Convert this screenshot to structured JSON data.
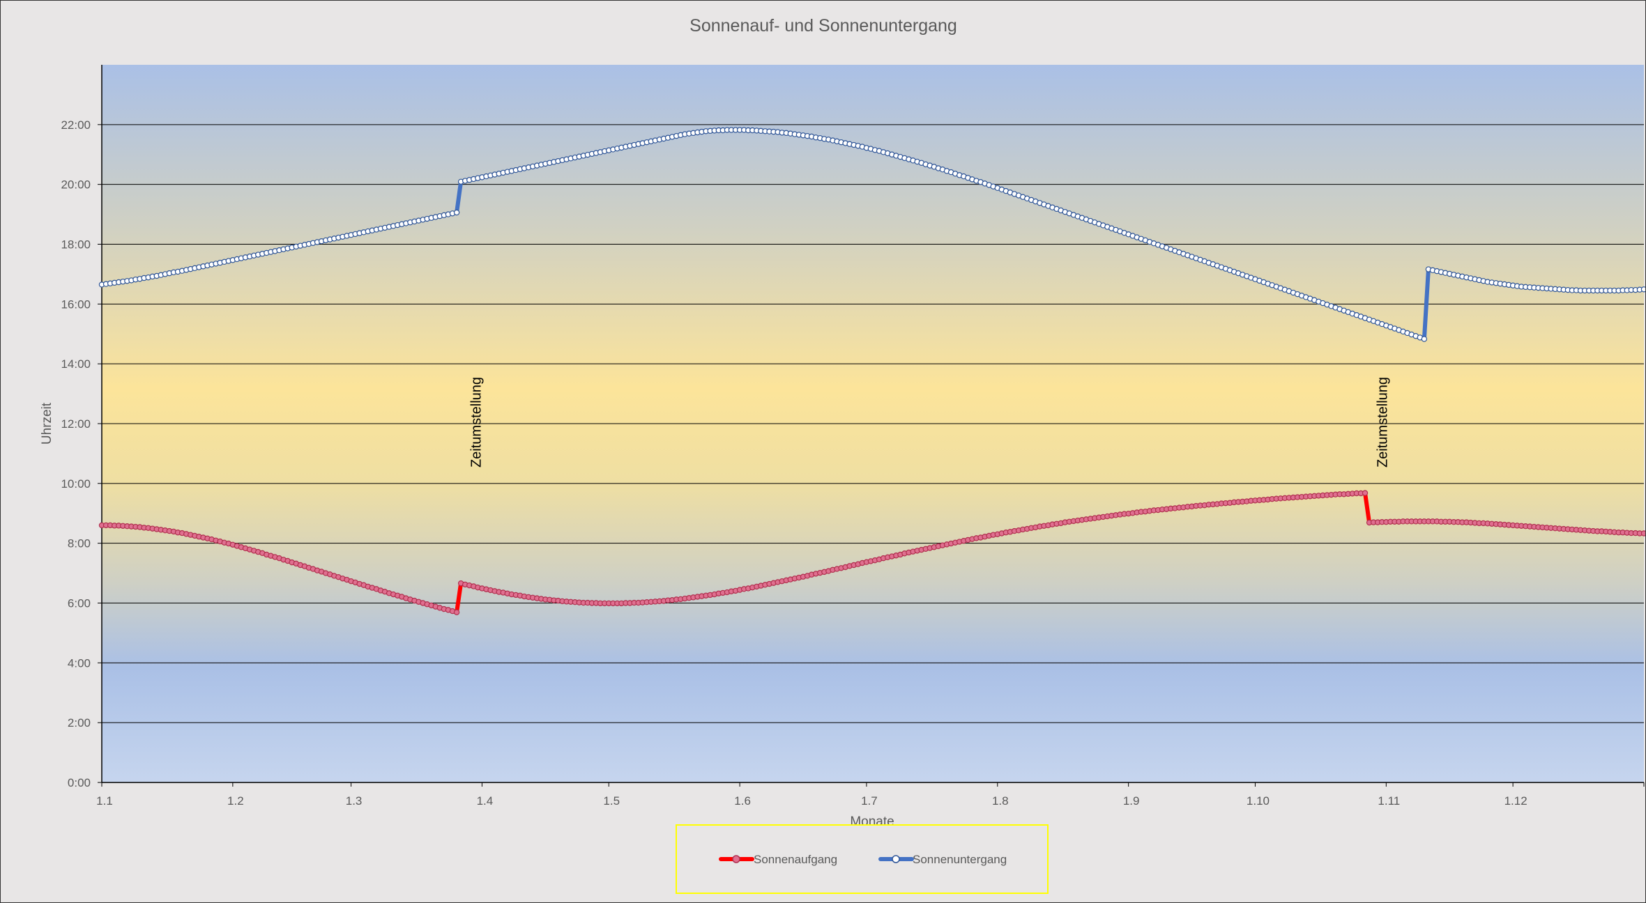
{
  "chart_data": {
    "type": "line",
    "title": "Sonnenauf- und Sonnenuntergang",
    "xlabel": "Monate",
    "ylabel": "Uhrzeit",
    "x_ticks": [
      "1.1",
      "1.2",
      "1.3",
      "1.4",
      "1.5",
      "1.6",
      "1.7",
      "1.8",
      "1.9",
      "1.10",
      "1.11",
      "1.12"
    ],
    "y_ticks": [
      "0:00",
      "2:00",
      "4:00",
      "6:00",
      "8:00",
      "10:00",
      "12:00",
      "14:00",
      "16:00",
      "18:00",
      "20:00",
      "22:00"
    ],
    "ylim": [
      0,
      24
    ],
    "xlim_days": [
      0,
      365
    ],
    "grid": true,
    "legend_position": "bottom",
    "dst_start_day": 85,
    "dst_end_day": 302,
    "annotations": [
      {
        "text": "Zeitumstellung",
        "day": 88.5
      },
      {
        "text": "Zeitumstellung",
        "day": 303
      }
    ],
    "series": [
      {
        "name": "Sonnenaufgang",
        "color": "#ff0000",
        "marker_color": "#e07090",
        "unit": "hours",
        "values": [
          8.6,
          8.6,
          8.6,
          8.59,
          8.59,
          8.58,
          8.57,
          8.56,
          8.55,
          8.54,
          8.52,
          8.51,
          8.49,
          8.47,
          8.45,
          8.43,
          8.41,
          8.39,
          8.36,
          8.34,
          8.31,
          8.28,
          8.25,
          8.22,
          8.19,
          8.16,
          8.13,
          8.09,
          8.06,
          8.02,
          7.99,
          7.95,
          7.91,
          7.87,
          7.83,
          7.79,
          7.75,
          7.71,
          7.67,
          7.62,
          7.58,
          7.54,
          7.5,
          7.45,
          7.41,
          7.36,
          7.32,
          7.27,
          7.23,
          7.18,
          7.14,
          7.09,
          7.05,
          7.0,
          6.96,
          6.91,
          6.87,
          6.82,
          6.78,
          6.73,
          6.69,
          6.64,
          6.6,
          6.55,
          6.51,
          6.47,
          6.42,
          6.38,
          6.33,
          6.29,
          6.25,
          6.21,
          6.16,
          6.12,
          6.08,
          6.04,
          6.0,
          5.96,
          5.92,
          5.88,
          5.84,
          5.8,
          5.77,
          5.73,
          5.69,
          6.66,
          6.62,
          6.59,
          6.56,
          6.52,
          6.49,
          6.46,
          6.43,
          6.4,
          6.37,
          6.35,
          6.32,
          6.29,
          6.27,
          6.25,
          6.22,
          6.2,
          6.18,
          6.16,
          6.14,
          6.12,
          6.11,
          6.09,
          6.08,
          6.06,
          6.05,
          6.04,
          6.03,
          6.02,
          6.01,
          6.01,
          6.0,
          6.0,
          5.99,
          5.99,
          5.99,
          5.99,
          5.99,
          5.99,
          6.0,
          6.0,
          6.01,
          6.01,
          6.02,
          6.03,
          6.04,
          6.05,
          6.06,
          6.07,
          6.09,
          6.1,
          6.12,
          6.13,
          6.15,
          6.17,
          6.19,
          6.21,
          6.23,
          6.25,
          6.27,
          6.29,
          6.32,
          6.34,
          6.36,
          6.39,
          6.41,
          6.44,
          6.47,
          6.49,
          6.52,
          6.55,
          6.58,
          6.61,
          6.64,
          6.67,
          6.7,
          6.73,
          6.76,
          6.79,
          6.82,
          6.85,
          6.88,
          6.91,
          6.95,
          6.98,
          7.01,
          7.04,
          7.07,
          7.11,
          7.14,
          7.17,
          7.2,
          7.24,
          7.27,
          7.3,
          7.34,
          7.37,
          7.4,
          7.43,
          7.46,
          7.5,
          7.53,
          7.56,
          7.59,
          7.62,
          7.66,
          7.69,
          7.72,
          7.75,
          7.78,
          7.81,
          7.84,
          7.87,
          7.9,
          7.93,
          7.96,
          7.99,
          8.02,
          8.05,
          8.08,
          8.11,
          8.14,
          8.17,
          8.19,
          8.22,
          8.25,
          8.28,
          8.3,
          8.33,
          8.36,
          8.38,
          8.41,
          8.43,
          8.46,
          8.48,
          8.51,
          8.53,
          8.56,
          8.58,
          8.6,
          8.63,
          8.65,
          8.67,
          8.7,
          8.72,
          8.74,
          8.76,
          8.78,
          8.8,
          8.82,
          8.84,
          8.86,
          8.88,
          8.9,
          8.92,
          8.94,
          8.96,
          8.98,
          8.99,
          9.01,
          9.03,
          9.05,
          9.06,
          9.08,
          9.1,
          9.11,
          9.13,
          9.14,
          9.16,
          9.17,
          9.19,
          9.2,
          9.22,
          9.23,
          9.25,
          9.26,
          9.27,
          9.29,
          9.3,
          9.31,
          9.33,
          9.34,
          9.35,
          9.37,
          9.38,
          9.39,
          9.4,
          9.42,
          9.43,
          9.44,
          9.45,
          9.46,
          9.48,
          9.49,
          9.5,
          9.51,
          9.52,
          9.53,
          9.54,
          9.55,
          9.56,
          9.57,
          9.58,
          9.59,
          9.6,
          9.61,
          9.62,
          9.63,
          9.64,
          9.64,
          9.65,
          9.66,
          9.67,
          9.67,
          9.68,
          8.69,
          8.7,
          8.7,
          8.71,
          8.71,
          8.72,
          8.72,
          8.72,
          8.73,
          8.73,
          8.73,
          8.73,
          8.73,
          8.73,
          8.73,
          8.73,
          8.73,
          8.72,
          8.72,
          8.72,
          8.71,
          8.71,
          8.7,
          8.7,
          8.69,
          8.68,
          8.67,
          8.67,
          8.66,
          8.65,
          8.64,
          8.63,
          8.62,
          8.61,
          8.6,
          8.59,
          8.58,
          8.57,
          8.56,
          8.55,
          8.54,
          8.53,
          8.52,
          8.51,
          8.5,
          8.49,
          8.48,
          8.47,
          8.46,
          8.45,
          8.44,
          8.43,
          8.42,
          8.41,
          8.4,
          8.4,
          8.39,
          8.38,
          8.37,
          8.36,
          8.36,
          8.35,
          8.34,
          8.34,
          8.33,
          8.33,
          8.32,
          8.32,
          8.31,
          8.31,
          8.31,
          8.3,
          8.3,
          8.3,
          8.3,
          8.3,
          8.3,
          8.3,
          8.3,
          8.3,
          8.3,
          8.3,
          8.3,
          8.31,
          8.31,
          8.31
        ]
      },
      {
        "name": "Sonnenuntergang",
        "color": "#4472c4",
        "marker_color": "#ffffff",
        "unit": "hours",
        "values": [
          16.65,
          16.67,
          16.69,
          16.71,
          16.73,
          16.75,
          16.77,
          16.79,
          16.82,
          16.84,
          16.87,
          16.89,
          16.92,
          16.94,
          16.97,
          17.0,
          17.03,
          17.06,
          17.08,
          17.11,
          17.14,
          17.17,
          17.2,
          17.23,
          17.26,
          17.29,
          17.32,
          17.35,
          17.38,
          17.41,
          17.44,
          17.47,
          17.5,
          17.53,
          17.56,
          17.59,
          17.62,
          17.65,
          17.68,
          17.71,
          17.74,
          17.77,
          17.8,
          17.83,
          17.86,
          17.89,
          17.92,
          17.95,
          17.98,
          18.01,
          18.04,
          18.07,
          18.1,
          18.13,
          18.16,
          18.19,
          18.22,
          18.25,
          18.28,
          18.31,
          18.34,
          18.37,
          18.4,
          18.43,
          18.46,
          18.49,
          18.52,
          18.55,
          18.58,
          18.61,
          18.64,
          18.67,
          18.7,
          18.73,
          18.76,
          18.79,
          18.82,
          18.85,
          18.88,
          18.91,
          18.94,
          18.97,
          19.0,
          19.03,
          19.06,
          20.09,
          20.12,
          20.15,
          20.18,
          20.21,
          20.24,
          20.27,
          20.3,
          20.33,
          20.36,
          20.39,
          20.42,
          20.45,
          20.48,
          20.51,
          20.54,
          20.57,
          20.6,
          20.63,
          20.66,
          20.69,
          20.72,
          20.75,
          20.78,
          20.81,
          20.84,
          20.87,
          20.9,
          20.93,
          20.96,
          20.99,
          21.02,
          21.05,
          21.08,
          21.11,
          21.14,
          21.17,
          21.2,
          21.23,
          21.26,
          21.29,
          21.32,
          21.35,
          21.38,
          21.41,
          21.44,
          21.47,
          21.5,
          21.53,
          21.56,
          21.59,
          21.62,
          21.65,
          21.68,
          21.7,
          21.72,
          21.74,
          21.76,
          21.78,
          21.79,
          21.8,
          21.81,
          21.81,
          21.82,
          21.82,
          21.82,
          21.82,
          21.82,
          21.81,
          21.81,
          21.8,
          21.79,
          21.78,
          21.77,
          21.76,
          21.75,
          21.73,
          21.72,
          21.7,
          21.68,
          21.66,
          21.64,
          21.62,
          21.6,
          21.57,
          21.55,
          21.52,
          21.5,
          21.47,
          21.44,
          21.41,
          21.38,
          21.35,
          21.32,
          21.29,
          21.26,
          21.22,
          21.19,
          21.15,
          21.12,
          21.08,
          21.04,
          21.0,
          20.96,
          20.92,
          20.88,
          20.84,
          20.8,
          20.76,
          20.72,
          20.67,
          20.63,
          20.59,
          20.54,
          20.5,
          20.45,
          20.41,
          20.36,
          20.31,
          20.27,
          20.22,
          20.17,
          20.12,
          20.08,
          20.03,
          19.98,
          19.93,
          19.88,
          19.83,
          19.78,
          19.73,
          19.68,
          19.63,
          19.58,
          19.53,
          19.48,
          19.43,
          19.38,
          19.33,
          19.28,
          19.23,
          19.18,
          19.13,
          19.08,
          19.03,
          18.98,
          18.93,
          18.88,
          18.83,
          18.78,
          18.73,
          18.68,
          18.63,
          18.58,
          18.53,
          18.48,
          18.43,
          18.38,
          18.33,
          18.28,
          18.23,
          18.18,
          18.13,
          18.08,
          18.03,
          17.98,
          17.93,
          17.88,
          17.83,
          17.78,
          17.73,
          17.68,
          17.63,
          17.58,
          17.53,
          17.48,
          17.43,
          17.38,
          17.33,
          17.28,
          17.23,
          17.18,
          17.13,
          17.08,
          17.03,
          16.98,
          16.93,
          16.88,
          16.83,
          16.78,
          16.73,
          16.68,
          16.63,
          16.58,
          16.53,
          16.48,
          16.43,
          16.38,
          16.33,
          16.28,
          16.23,
          16.18,
          16.13,
          16.08,
          16.03,
          15.98,
          15.93,
          15.88,
          15.83,
          15.78,
          15.73,
          15.68,
          15.63,
          15.58,
          15.53,
          15.48,
          15.43,
          15.38,
          15.33,
          15.28,
          15.23,
          15.18,
          15.13,
          15.08,
          15.03,
          14.98,
          14.93,
          14.88,
          14.83,
          17.16,
          17.13,
          17.1,
          17.07,
          17.04,
          17.01,
          16.98,
          16.95,
          16.92,
          16.89,
          16.86,
          16.83,
          16.8,
          16.77,
          16.74,
          16.72,
          16.7,
          16.68,
          16.66,
          16.64,
          16.62,
          16.6,
          16.58,
          16.57,
          16.56,
          16.55,
          16.54,
          16.53,
          16.52,
          16.51,
          16.5,
          16.49,
          16.48,
          16.47,
          16.46,
          16.46,
          16.45,
          16.45,
          16.45,
          16.45,
          16.45,
          16.45,
          16.45,
          16.45,
          16.45,
          16.45,
          16.46,
          16.46,
          16.47,
          16.47,
          16.48,
          16.49,
          16.5,
          16.51,
          16.52,
          16.53,
          16.54,
          16.55,
          16.56,
          16.57,
          16.58,
          16.59,
          16.6,
          16.61,
          16.62
        ]
      }
    ]
  }
}
